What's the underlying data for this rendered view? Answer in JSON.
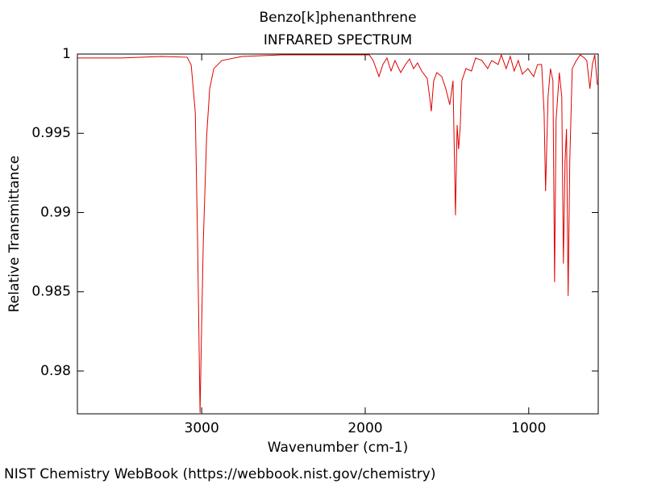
{
  "chart_data": {
    "type": "line",
    "title": "Benzo[k]phenanthrene",
    "subtitle": "INFRARED SPECTRUM",
    "x_label": "Wavenumber (cm-1)",
    "y_label": "Relative Transmittance",
    "source": "NIST Chemistry WebBook (https://webbook.nist.gov/chemistry)",
    "color": "#e00000",
    "x": [
      3758,
      3493,
      3246,
      3089,
      3064,
      3039,
      3025,
      3010,
      3000,
      2990,
      2970,
      2951,
      2926,
      2877,
      2754,
      2507,
      2261,
      1975,
      1951,
      1916,
      1892,
      1867,
      1842,
      1818,
      1783,
      1754,
      1729,
      1704,
      1680,
      1655,
      1621,
      1606,
      1596,
      1581,
      1562,
      1532,
      1507,
      1483,
      1463,
      1448,
      1438,
      1429,
      1419,
      1409,
      1384,
      1350,
      1325,
      1286,
      1251,
      1227,
      1187,
      1168,
      1138,
      1113,
      1089,
      1064,
      1039,
      1005,
      970,
      946,
      921,
      906,
      897,
      882,
      867,
      852,
      842,
      833,
      813,
      798,
      788,
      778,
      769,
      759,
      749,
      734,
      709,
      685,
      660,
      645,
      626,
      611,
      596,
      581
    ],
    "values": [
      0.99975,
      0.99975,
      0.99985,
      0.9998,
      0.9993,
      0.99629,
      0.98815,
      0.97737,
      0.98306,
      0.98815,
      0.99476,
      0.99781,
      0.99908,
      0.99959,
      0.99985,
      0.99995,
      0.99995,
      0.99995,
      0.99959,
      0.99858,
      0.99934,
      0.99975,
      0.99893,
      0.99959,
      0.99883,
      0.99934,
      0.99969,
      0.99908,
      0.99944,
      0.99893,
      0.99847,
      0.9973,
      0.99639,
      0.99832,
      0.99883,
      0.99858,
      0.99781,
      0.9968,
      0.99832,
      0.98983,
      0.99552,
      0.994,
      0.99542,
      0.99832,
      0.99908,
      0.99893,
      0.99975,
      0.99959,
      0.99908,
      0.99959,
      0.99934,
      0.99995,
      0.99908,
      0.99985,
      0.99893,
      0.99959,
      0.99873,
      0.99908,
      0.99858,
      0.99934,
      0.99934,
      0.99629,
      0.99135,
      0.9973,
      0.99908,
      0.99832,
      0.98561,
      0.99578,
      0.99883,
      0.9973,
      0.98678,
      0.99323,
      0.99527,
      0.98474,
      0.99323,
      0.99908,
      0.99959,
      0.99995,
      0.99975,
      0.99959,
      0.99781,
      0.99934,
      0.99995,
      0.99807
    ],
    "xlim": [
      3760,
      575
    ],
    "ylim": [
      0.9773,
      1
    ],
    "xticks": [
      3000,
      2000,
      1000
    ],
    "yticks": [
      0.98,
      0.985,
      0.99,
      0.995,
      1
    ],
    "grid": false
  }
}
